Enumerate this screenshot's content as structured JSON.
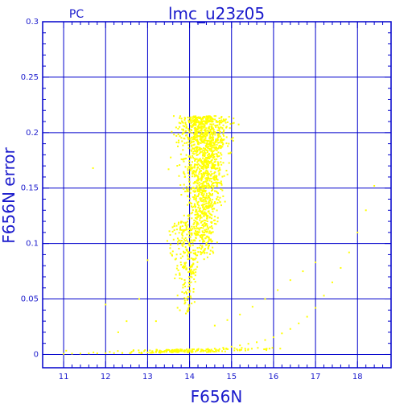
{
  "chart_data": {
    "type": "scatter",
    "title": "lmc_u23z05",
    "subtitle": "PC",
    "xlabel": "F656N",
    "ylabel": "F656N error",
    "xlim": [
      10.5,
      18.8
    ],
    "ylim": [
      -0.012,
      0.3
    ],
    "grid": true,
    "x_ticks": [
      "11",
      "12",
      "13",
      "14",
      "15",
      "16",
      "17",
      "18"
    ],
    "y_ticks": [
      "0",
      "0.05",
      "0.1",
      "0.15",
      "0.2",
      "0.25",
      "0.3"
    ],
    "x_tick_values": [
      11,
      12,
      13,
      14,
      15,
      16,
      17,
      18
    ],
    "y_tick_values": [
      0,
      0.05,
      0.1,
      0.15,
      0.2,
      0.25,
      0.3
    ],
    "point_color": "#ffff00",
    "grid_color": "#0000cc",
    "text_color": "#1a1acc",
    "series": [
      {
        "values": [
          [
            11.0,
            0.0005
          ],
          [
            11.2,
            0.0007
          ],
          [
            11.4,
            0.0008
          ],
          [
            11.6,
            0.0009
          ],
          [
            11.8,
            0.001
          ],
          [
            12.0,
            0.0011
          ],
          [
            12.2,
            0.0012
          ],
          [
            12.4,
            0.0013
          ],
          [
            12.6,
            0.0014
          ],
          [
            12.8,
            0.0016
          ],
          [
            13.0,
            0.0018
          ],
          [
            13.2,
            0.002
          ],
          [
            13.4,
            0.0023
          ],
          [
            13.6,
            0.0026
          ],
          [
            13.8,
            0.003
          ],
          [
            14.0,
            0.0034
          ],
          [
            14.2,
            0.0039
          ],
          [
            14.4,
            0.0045
          ],
          [
            14.6,
            0.0052
          ],
          [
            14.8,
            0.006
          ],
          [
            15.0,
            0.007
          ],
          [
            15.2,
            0.0082
          ],
          [
            15.4,
            0.0096
          ],
          [
            15.6,
            0.011
          ],
          [
            15.8,
            0.013
          ],
          [
            16.0,
            0.0155
          ],
          [
            16.2,
            0.019
          ],
          [
            16.4,
            0.023
          ],
          [
            16.6,
            0.028
          ],
          [
            16.8,
            0.034
          ],
          [
            17.0,
            0.042
          ],
          [
            17.2,
            0.053
          ],
          [
            17.4,
            0.065
          ],
          [
            17.6,
            0.078
          ],
          [
            17.8,
            0.092
          ],
          [
            18.0,
            0.11
          ],
          [
            18.2,
            0.13
          ],
          [
            18.4,
            0.152
          ],
          [
            14.6,
            0.026
          ],
          [
            14.9,
            0.031
          ],
          [
            15.2,
            0.036
          ],
          [
            15.5,
            0.043
          ],
          [
            15.8,
            0.05
          ],
          [
            16.1,
            0.058
          ],
          [
            16.4,
            0.067
          ],
          [
            16.7,
            0.075
          ],
          [
            17.0,
            0.083
          ],
          [
            11.7,
            0.168
          ],
          [
            12.0,
            0.045
          ],
          [
            12.5,
            0.03
          ],
          [
            12.8,
            0.05
          ],
          [
            13.0,
            0.085
          ],
          [
            13.5,
            0.167
          ],
          [
            13.2,
            0.03
          ],
          [
            12.3,
            0.02
          ]
        ],
        "clusters": [
          {
            "x_range": [
              13.5,
              15.2
            ],
            "y_range": [
              0.085,
              0.215
            ],
            "count": 1400,
            "center_x": 14.35
          },
          {
            "x_range": [
              13.0,
              14.2
            ],
            "y_range": [
              0.035,
              0.12
            ],
            "count": 260,
            "center_x": 13.95
          },
          {
            "x_range": [
              11.0,
              16.8
            ],
            "y_range": [
              0.0,
              0.02
            ],
            "count": 160,
            "center_x": 14.0
          }
        ]
      }
    ]
  }
}
